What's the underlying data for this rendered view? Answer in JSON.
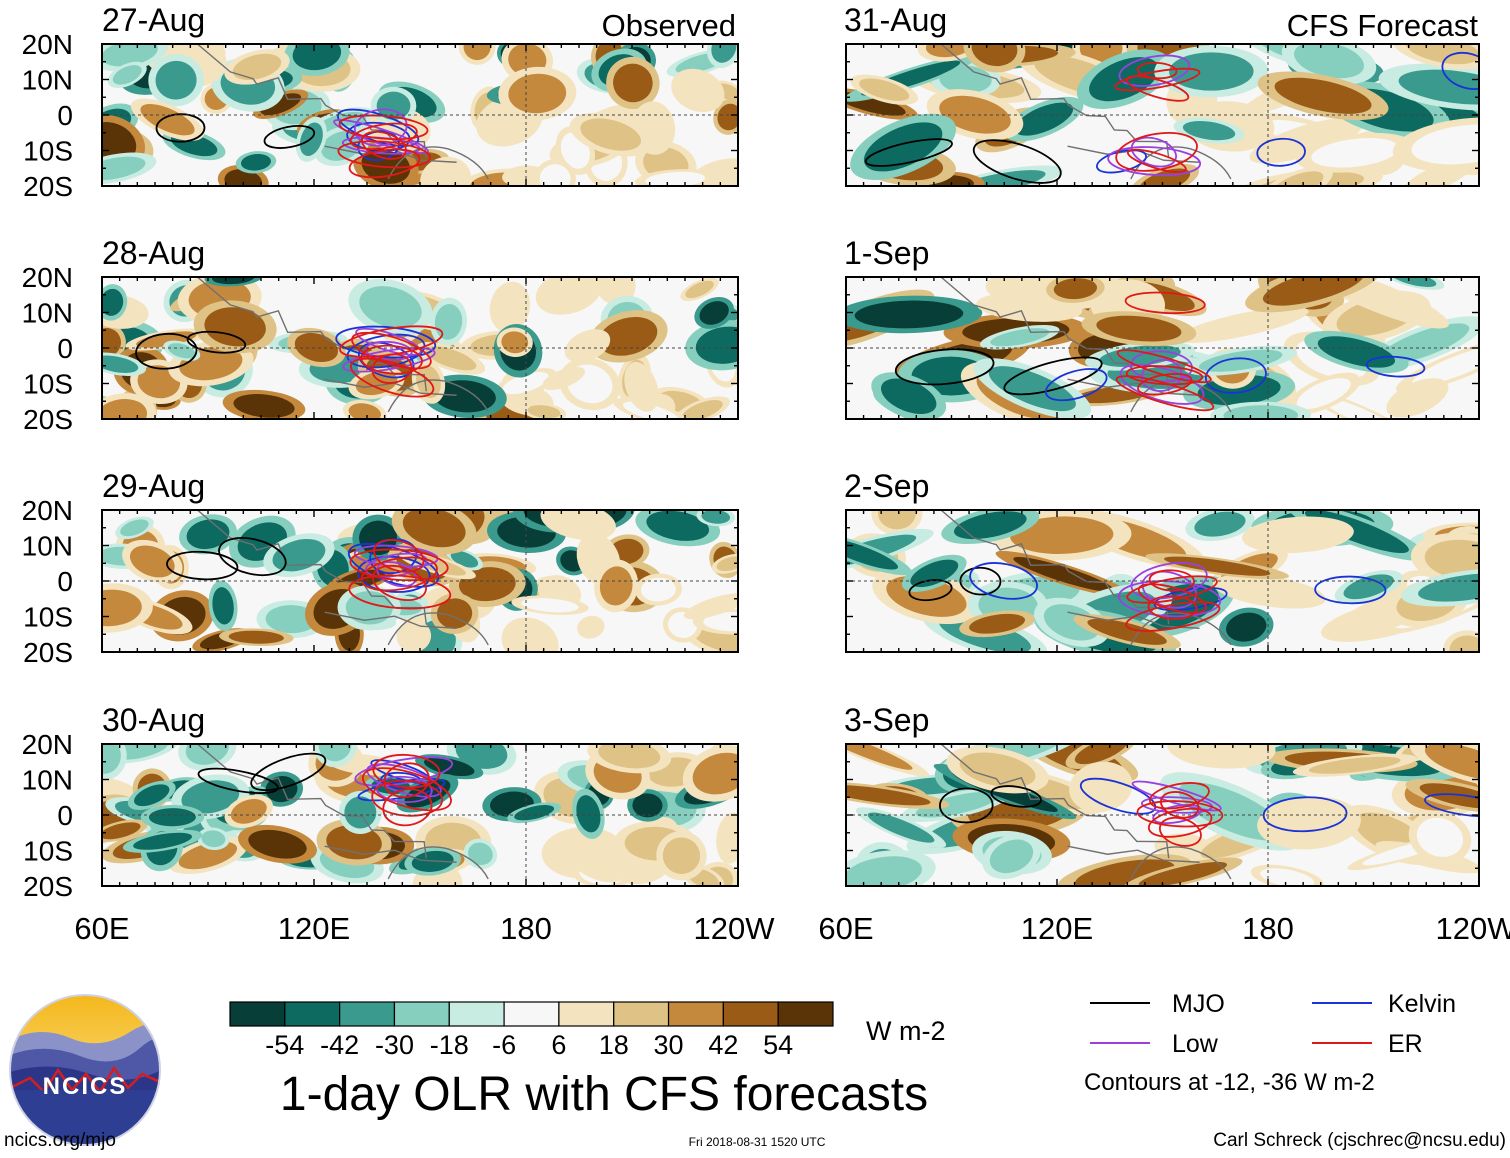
{
  "title": "1-day OLR with CFS forecasts",
  "headers": {
    "observed": "Observed",
    "forecast": "CFS Forecast"
  },
  "chart_data": {
    "type": "heatmap",
    "title": "1-day OLR with CFS forecasts",
    "variable": "OLR anomaly",
    "units": "W m-2",
    "panels": [
      {
        "date": "27-Aug",
        "group": "Observed"
      },
      {
        "date": "28-Aug",
        "group": "Observed"
      },
      {
        "date": "29-Aug",
        "group": "Observed"
      },
      {
        "date": "30-Aug",
        "group": "Observed"
      },
      {
        "date": "31-Aug",
        "group": "CFS Forecast"
      },
      {
        "date": "1-Sep",
        "group": "CFS Forecast"
      },
      {
        "date": "2-Sep",
        "group": "CFS Forecast"
      },
      {
        "date": "3-Sep",
        "group": "CFS Forecast"
      }
    ],
    "x_axis": {
      "ticks": [
        "60E",
        "120E",
        "180",
        "120W"
      ],
      "range": [
        "60E",
        "120W"
      ]
    },
    "y_axis": {
      "ticks": [
        "20N",
        "10N",
        "0",
        "10S",
        "20S"
      ],
      "range": [
        "20S",
        "20N"
      ]
    },
    "colorbar": {
      "tick_labels": [
        "-54",
        "-42",
        "-30",
        "-18",
        "-6",
        "6",
        "18",
        "30",
        "42",
        "54"
      ],
      "colors": [
        "#073f38",
        "#0c6a61",
        "#3a9a8e",
        "#86cfbf",
        "#c8ebe2",
        "#f7f7f7",
        "#f4e3bf",
        "#dfc285",
        "#c4893d",
        "#9a5b17",
        "#5a3407"
      ]
    },
    "contours": {
      "levels_note": "Contours at -12, -36 W m-2",
      "legend": [
        {
          "name": "MJO",
          "color": "#000000"
        },
        {
          "name": "Kelvin",
          "color": "#1a33d6"
        },
        {
          "name": "Low",
          "color": "#9b40e0"
        },
        {
          "name": "ER",
          "color": "#e01818"
        }
      ]
    }
  },
  "footer": {
    "logo_text": "NCICS",
    "url": "ncics.org/mjo",
    "timestamp": "Fri 2018-08-31 1520 UTC",
    "credit": "Carl Schreck (cjschrec@ncsu.edu)"
  }
}
